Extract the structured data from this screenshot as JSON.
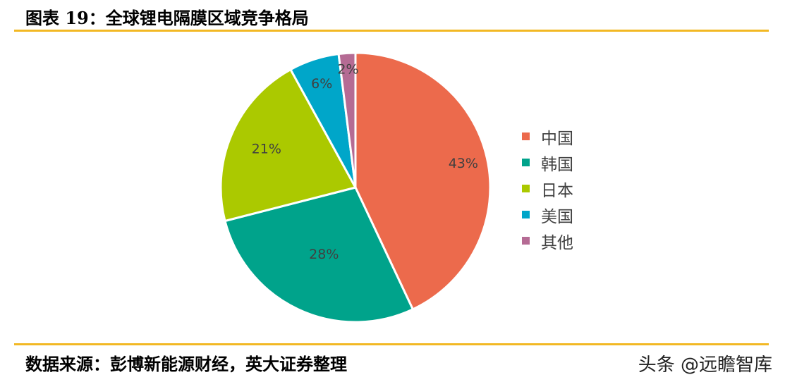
{
  "header": {
    "title": "图表 19：全球锂电隔膜区域竞争格局"
  },
  "footer": {
    "source": "数据来源：彭博新能源财经，英大证券整理",
    "watermark": "头条 @远瞻智库"
  },
  "chart_data": {
    "type": "pie",
    "title": "",
    "categories": [
      "中国",
      "韩国",
      "日本",
      "美国",
      "其他"
    ],
    "values": [
      43,
      28,
      21,
      6,
      2
    ],
    "labels": [
      "43%",
      "28%",
      "21%",
      "6%",
      "2%"
    ],
    "colors": [
      "#ec6a4c",
      "#00a38b",
      "#abc900",
      "#00a6c9",
      "#b56b94"
    ],
    "legend": "right",
    "start": "12 o'clock, clockwise"
  }
}
